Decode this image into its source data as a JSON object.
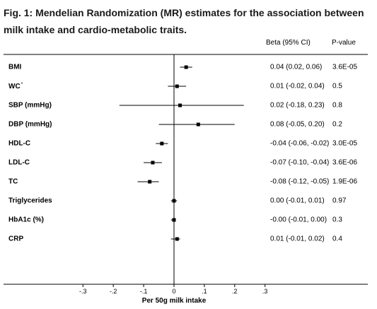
{
  "caption": "Fig. 1: Mendelian Randomization (MR) estimates for the association between milk intake and cardio-metabolic traits.",
  "headers": {
    "beta": "Beta (95% CI)",
    "p": "P-value"
  },
  "chart_data": {
    "type": "forest",
    "xlabel": "Per 50g milk intake",
    "xlim": [
      -0.3,
      0.3
    ],
    "ticks": [
      {
        "value": -0.3,
        "label": "-.3"
      },
      {
        "value": -0.2,
        "label": "-.2"
      },
      {
        "value": -0.1,
        "label": "-.1"
      },
      {
        "value": 0,
        "label": "0"
      },
      {
        "value": 0.1,
        "label": ".1"
      },
      {
        "value": 0.2,
        "label": ".2"
      },
      {
        "value": 0.3,
        "label": ".3"
      }
    ],
    "reference_line": 0,
    "rows": [
      {
        "label": "BMI",
        "mark": "",
        "beta": 0.04,
        "lo": 0.02,
        "hi": 0.06,
        "text": "0.04 (0.02, 0.06)",
        "p": "3.6E-05"
      },
      {
        "label": "WC",
        "mark": "*",
        "beta": 0.01,
        "lo": -0.02,
        "hi": 0.04,
        "text": "0.01 (-0.02, 0.04)",
        "p": "0.5"
      },
      {
        "label": "SBP (mmHg)",
        "mark": "",
        "beta": 0.02,
        "lo": -0.18,
        "hi": 0.23,
        "text": "0.02 (-0.18, 0.23)",
        "p": "0.8"
      },
      {
        "label": "DBP (mmHg)",
        "mark": "",
        "beta": 0.08,
        "lo": -0.05,
        "hi": 0.2,
        "text": "0.08 (-0.05, 0.20)",
        "p": "0.2"
      },
      {
        "label": "HDL-C",
        "mark": "",
        "beta": -0.04,
        "lo": -0.06,
        "hi": -0.02,
        "text": "-0.04 (-0.06, -0.02)",
        "p": "3.0E-05"
      },
      {
        "label": "LDL-C",
        "mark": "",
        "beta": -0.07,
        "lo": -0.1,
        "hi": -0.04,
        "text": "-0.07 (-0.10, -0.04)",
        "p": "3.6E-06"
      },
      {
        "label": "TC",
        "mark": "",
        "beta": -0.08,
        "lo": -0.12,
        "hi": -0.05,
        "text": "-0.08 (-0.12, -0.05)",
        "p": "1.9E-06"
      },
      {
        "label": "Triglycerides",
        "mark": "",
        "beta": 0.0,
        "lo": -0.01,
        "hi": 0.01,
        "text": "0.00 (-0.01, 0.01)",
        "p": "0.97"
      },
      {
        "label": "HbA1c (%)",
        "mark": "",
        "beta": 0.0,
        "lo": -0.01,
        "hi": 0.0,
        "text": "-0.00 (-0.01, 0.00)",
        "p": "0.3"
      },
      {
        "label": "CRP",
        "mark": "",
        "beta": 0.01,
        "lo": -0.01,
        "hi": 0.02,
        "text": "0.01 (-0.01, 0.02)",
        "p": "0.4"
      }
    ]
  }
}
